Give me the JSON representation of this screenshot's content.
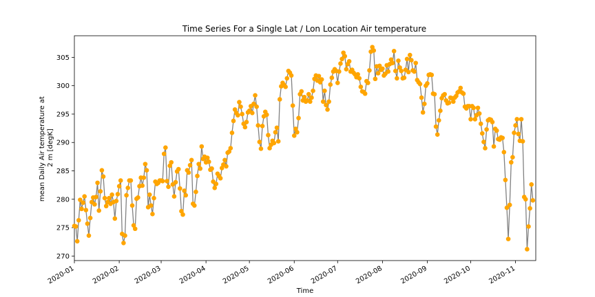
{
  "chart_data": {
    "type": "line",
    "title": "Time Series For a Single Lat / Lon Location Air temperature",
    "xlabel": "Time",
    "ylabel": [
      "mean Daily Air temperature at",
      "2 m [degK]"
    ],
    "x_start": "2020-01-01",
    "x_end": "2020-11-15",
    "ylim": [
      269.2,
      308.8
    ],
    "y_ticks": [
      270,
      275,
      280,
      285,
      290,
      295,
      300,
      305
    ],
    "x_ticks": [
      "2020-01",
      "2020-02",
      "2020-03",
      "2020-04",
      "2020-05",
      "2020-06",
      "2020-07",
      "2020-08",
      "2020-09",
      "2020-10",
      "2020-11"
    ],
    "grid": false,
    "line_color": "#808080",
    "marker_color": "#ffa500",
    "series": [
      {
        "x_start_date": "2020-01-01",
        "x_step": "1 day",
        "values": [
          275.3,
          275.2,
          272.6,
          276.3,
          279.9,
          278.3,
          279.4,
          280.5,
          278.1,
          275.7,
          273.6,
          276.7,
          279.5,
          280.3,
          279.1,
          280.4,
          282.9,
          278.0,
          281.4,
          285.1,
          284.0,
          280.2,
          278.8,
          279.5,
          280.2,
          279.2,
          280.8,
          279.5,
          276.6,
          279.7,
          280.9,
          282.3,
          283.3,
          273.9,
          272.3,
          273.6,
          280.7,
          282.0,
          283.3,
          283.3,
          278.9,
          275.4,
          274.8,
          280.1,
          280.3,
          282.3,
          283.8,
          282.4,
          283.8,
          286.2,
          285.1,
          278.6,
          280.8,
          278.9,
          277.4,
          280.2,
          283.1,
          282.7,
          282.9,
          283.3,
          283.3,
          283.2,
          288.0,
          289.1,
          283.2,
          282.2,
          285.9,
          286.5,
          282.6,
          280.5,
          283.0,
          284.9,
          285.3,
          281.9,
          277.9,
          277.3,
          281.5,
          280.7,
          285.1,
          284.7,
          286.0,
          286.9,
          279.2,
          278.9,
          281.3,
          284.1,
          286.2,
          285.4,
          289.3,
          287.1,
          287.5,
          286.5,
          287.3,
          286.6,
          285.2,
          285.4,
          283.1,
          282.0,
          282.7,
          284.5,
          284.1,
          283.7,
          285.5,
          286.1,
          286.9,
          285.8,
          288.2,
          288.4,
          289.0,
          291.7,
          293.8,
          295.8,
          295.2,
          294.8,
          297.1,
          296.3,
          295.0,
          293.3,
          292.7,
          293.6,
          295.3,
          295.6,
          296.4,
          295.2,
          296.8,
          298.3,
          296.3,
          293.0,
          290.1,
          288.9,
          292.9,
          294.6,
          295.4,
          294.9,
          291.3,
          289.0,
          289.6,
          290.3,
          289.9,
          291.8,
          292.6,
          290.2,
          297.6,
          299.9,
          300.5,
          300.1,
          299.8,
          301.3,
          302.6,
          302.3,
          301.8,
          296.5,
          291.2,
          292.4,
          291.8,
          294.3,
          298.5,
          299.0,
          297.4,
          298.0,
          297.2,
          297.4,
          298.5,
          297.2,
          297.9,
          299.1,
          301.2,
          301.8,
          300.9,
          301.7,
          300.6,
          301.1,
          297.2,
          299.1,
          296.6,
          295.8,
          297.2,
          300.2,
          301.4,
          302.5,
          302.9,
          302.6,
          300.5,
          302.5,
          303.9,
          304.7,
          305.8,
          305.2,
          302.9,
          303.8,
          304.3,
          302.5,
          302.8,
          302.3,
          302.0,
          301.5,
          302.0,
          301.3,
          299.8,
          299.0,
          298.9,
          298.6,
          300.8,
          300.5,
          302.7,
          306.0,
          306.8,
          306.2,
          301.2,
          303.4,
          302.2,
          303.5,
          302.8,
          303.0,
          301.8,
          302.1,
          303.6,
          302.5,
          303.8,
          304.6,
          304.0,
          306.1,
          302.6,
          301.3,
          304.4,
          303.2,
          302.6,
          301.3,
          301.4,
          302.8,
          304.7,
          302.4,
          305.4,
          304.5,
          302.7,
          302.5,
          304.0,
          301.0,
          300.6,
          300.3,
          297.9,
          295.3,
          296.8,
          300.0,
          300.4,
          301.9,
          302.0,
          301.9,
          298.6,
          298.5,
          292.8,
          291.4,
          293.9,
          295.6,
          297.8,
          298.3,
          298.5,
          297.4,
          296.9,
          297.0,
          297.9,
          297.8,
          297.2,
          297.9,
          298.2,
          298.8,
          299.0,
          299.6,
          298.8,
          298.6,
          296.3,
          296.0,
          296.4,
          296.4,
          294.1,
          296.4,
          296.1,
          294.1,
          294.8,
          296.1,
          295.1,
          293.3,
          291.6,
          290.1,
          289.0,
          292.3,
          293.9,
          294.1,
          294.0,
          293.6,
          289.3,
          292.4,
          292.1,
          290.6,
          290.5,
          290.9,
          290.8,
          288.3,
          283.4,
          278.5,
          273.0,
          279.0,
          286.5,
          287.4,
          291.7,
          293.0,
          294.1,
          291.5,
          290.3,
          294.1,
          290.2,
          280.4,
          280.0,
          271.2,
          275.2,
          278.4,
          282.6,
          279.8
        ]
      }
    ]
  }
}
